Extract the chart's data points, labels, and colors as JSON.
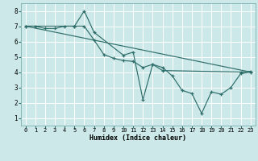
{
  "xlabel": "Humidex (Indice chaleur)",
  "bg_color": "#cce8e8",
  "grid_color": "#ffffff",
  "line_color": "#2e6e6a",
  "xlim": [
    -0.5,
    23.5
  ],
  "ylim": [
    0.5,
    8.5
  ],
  "xticks": [
    0,
    1,
    2,
    3,
    4,
    5,
    6,
    7,
    8,
    9,
    10,
    11,
    12,
    13,
    14,
    15,
    16,
    17,
    18,
    19,
    20,
    21,
    22,
    23
  ],
  "yticks": [
    1,
    2,
    3,
    4,
    5,
    6,
    7,
    8
  ],
  "series": [
    {
      "x": [
        0,
        1,
        2,
        3,
        4,
        5,
        6,
        7,
        8,
        9,
        10,
        11,
        12,
        13,
        14,
        15,
        16,
        17,
        18,
        19,
        20,
        21,
        22,
        23
      ],
      "y": [
        7.0,
        7.0,
        6.85,
        6.85,
        7.0,
        7.0,
        7.0,
        6.1,
        5.15,
        4.9,
        4.75,
        4.7,
        4.3,
        4.5,
        4.3,
        3.75,
        2.8,
        2.6,
        1.3,
        2.7,
        2.55,
        3.0,
        3.9,
        4.0
      ],
      "marker": true
    },
    {
      "x": [
        0,
        5,
        6,
        7,
        10,
        11,
        12,
        13,
        14,
        22,
        23
      ],
      "y": [
        7.0,
        7.0,
        8.0,
        6.6,
        5.1,
        5.3,
        2.2,
        4.5,
        4.1,
        4.0,
        4.05
      ],
      "marker": true
    },
    {
      "x": [
        0,
        23
      ],
      "y": [
        7.0,
        4.0
      ],
      "marker": false
    }
  ]
}
